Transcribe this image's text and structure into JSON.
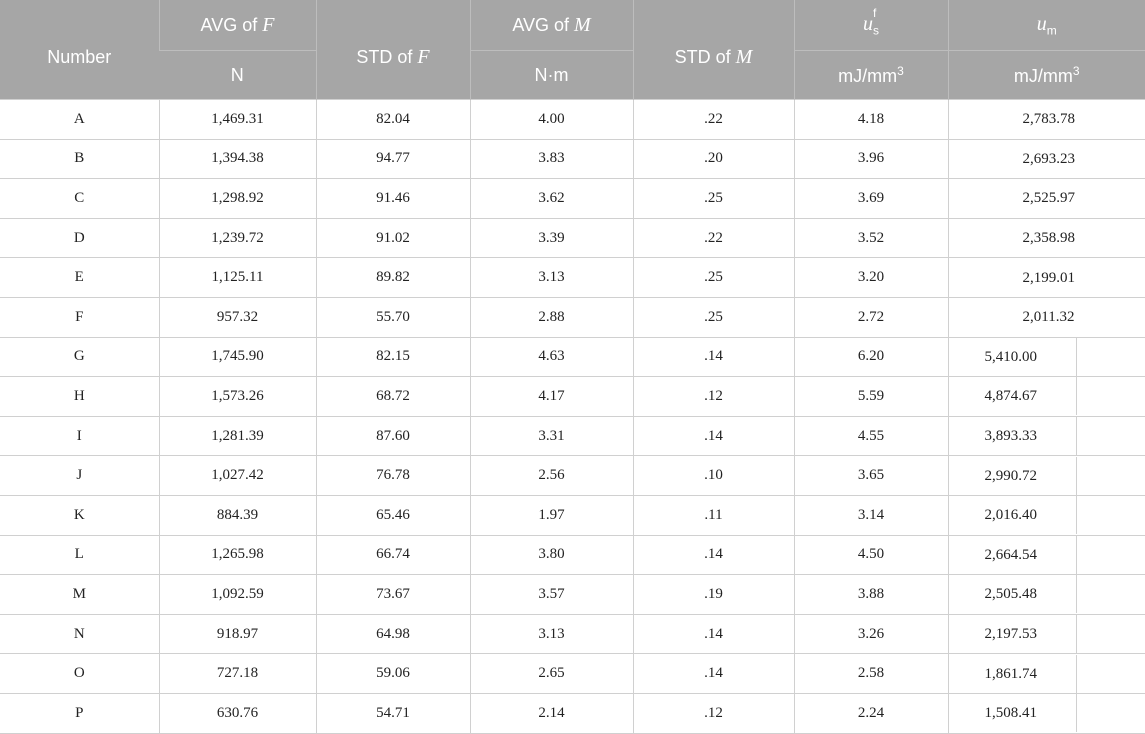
{
  "headers": {
    "number": "Number",
    "avg_f_prefix": "AVG of ",
    "avg_f_var": "F",
    "std_f_prefix": "STD of ",
    "std_f_var": "F",
    "avg_m_prefix": "AVG of ",
    "avg_m_var": "M",
    "std_m_prefix": "STD of ",
    "std_m_var": "M",
    "us_base": "u",
    "us_sup": "f",
    "us_sub": "s",
    "um_base": "u",
    "um_sub": "m",
    "unit_avg_f": "N",
    "unit_avg_m": "N·m",
    "unit_us": "mJ/mm",
    "unit_us_sup": "3",
    "unit_um": "mJ/mm",
    "unit_um_sup": "3"
  },
  "rows": [
    {
      "id": "A",
      "avg_f": "1,469.31",
      "std_f": "82.04",
      "avg_m": "4.00",
      "std_m": ".22",
      "us": "4.18",
      "um": "2,783.78"
    },
    {
      "id": "B",
      "avg_f": "1,394.38",
      "std_f": "94.77",
      "avg_m": "3.83",
      "std_m": ".20",
      "us": "3.96",
      "um": "2,693.23"
    },
    {
      "id": "C",
      "avg_f": "1,298.92",
      "std_f": "91.46",
      "avg_m": "3.62",
      "std_m": ".25",
      "us": "3.69",
      "um": "2,525.97"
    },
    {
      "id": "D",
      "avg_f": "1,239.72",
      "std_f": "91.02",
      "avg_m": "3.39",
      "std_m": ".22",
      "us": "3.52",
      "um": "2,358.98"
    },
    {
      "id": "E",
      "avg_f": "1,125.11",
      "std_f": "89.82",
      "avg_m": "3.13",
      "std_m": ".25",
      "us": "3.20",
      "um": "2,199.01"
    },
    {
      "id": "F",
      "avg_f": "957.32",
      "std_f": "55.70",
      "avg_m": "2.88",
      "std_m": ".25",
      "us": "2.72",
      "um": "2,011.32"
    },
    {
      "id": "G",
      "avg_f": "1,745.90",
      "std_f": "82.15",
      "avg_m": "4.63",
      "std_m": ".14",
      "us": "6.20",
      "um": "5,410.00"
    },
    {
      "id": "H",
      "avg_f": "1,573.26",
      "std_f": "68.72",
      "avg_m": "4.17",
      "std_m": ".12",
      "us": "5.59",
      "um": "4,874.67"
    },
    {
      "id": "I",
      "avg_f": "1,281.39",
      "std_f": "87.60",
      "avg_m": "3.31",
      "std_m": ".14",
      "us": "4.55",
      "um": "3,893.33"
    },
    {
      "id": "J",
      "avg_f": "1,027.42",
      "std_f": "76.78",
      "avg_m": "2.56",
      "std_m": ".10",
      "us": "3.65",
      "um": "2,990.72"
    },
    {
      "id": "K",
      "avg_f": "884.39",
      "std_f": "65.46",
      "avg_m": "1.97",
      "std_m": ".11",
      "us": "3.14",
      "um": "2,016.40"
    },
    {
      "id": "L",
      "avg_f": "1,265.98",
      "std_f": "66.74",
      "avg_m": "3.80",
      "std_m": ".14",
      "us": "4.50",
      "um": "2,664.54"
    },
    {
      "id": "M",
      "avg_f": "1,092.59",
      "std_f": "73.67",
      "avg_m": "3.57",
      "std_m": ".19",
      "us": "3.88",
      "um": "2,505.48"
    },
    {
      "id": "N",
      "avg_f": "918.97",
      "std_f": "64.98",
      "avg_m": "3.13",
      "std_m": ".14",
      "us": "3.26",
      "um": "2,197.53"
    },
    {
      "id": "O",
      "avg_f": "727.18",
      "std_f": "59.06",
      "avg_m": "2.65",
      "std_m": ".14",
      "us": "2.58",
      "um": "1,861.74"
    },
    {
      "id": "P",
      "avg_f": "630.76",
      "std_f": "54.71",
      "avg_m": "2.14",
      "std_m": ".12",
      "us": "2.24",
      "um": "1,508.41"
    }
  ]
}
